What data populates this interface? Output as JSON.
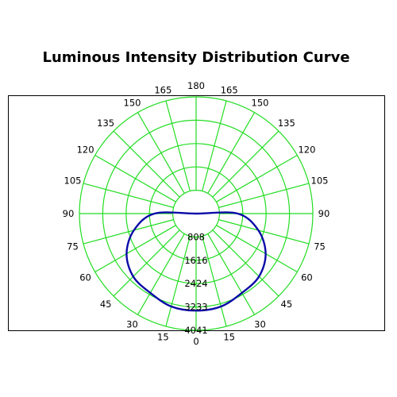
{
  "chart_data": {
    "type": "polar",
    "title": "Luminous Intensity Distribution Curve",
    "angles_step": 15,
    "angle_labels": [
      "0",
      "15",
      "30",
      "45",
      "60",
      "75",
      "90",
      "105",
      "120",
      "135",
      "150",
      "165",
      "180",
      "165",
      "150",
      "135",
      "120",
      "105",
      "90",
      "75",
      "60",
      "45",
      "30",
      "15"
    ],
    "radial_ticks": [
      808,
      1616,
      2424,
      3233,
      4041
    ],
    "rmax": 4041,
    "grid": true,
    "colors": {
      "grid": "#22dd22",
      "curve": "#0a0aa8",
      "frame": "#000000"
    },
    "series": [
      {
        "angles": [
          0,
          15,
          30,
          45,
          60,
          75,
          90,
          105
        ],
        "values": [
          3360,
          3330,
          3170,
          3080,
          2780,
          2230,
          1440,
          0
        ]
      }
    ]
  }
}
